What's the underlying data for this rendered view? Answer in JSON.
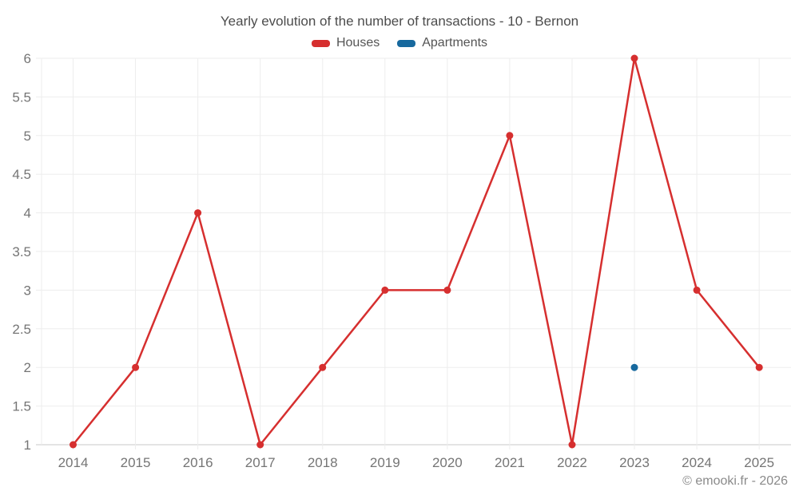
{
  "chart": {
    "title": "Yearly evolution of the number of transactions - 10 - Bernon",
    "footer": "© emooki.fr - 2026"
  },
  "legend": {
    "items": [
      {
        "label": "Houses",
        "color": "#d62f2f"
      },
      {
        "label": "Apartments",
        "color": "#17699e"
      }
    ]
  },
  "chart_data": {
    "type": "line",
    "title": "Yearly evolution of the number of transactions - 10 - Bernon",
    "categories": [
      "2014",
      "2015",
      "2016",
      "2017",
      "2018",
      "2019",
      "2020",
      "2021",
      "2022",
      "2023",
      "2024",
      "2025"
    ],
    "series": [
      {
        "name": "Houses",
        "color": "#d62f2f",
        "values": [
          1,
          2,
          4,
          1,
          2,
          3,
          3,
          5,
          1,
          6,
          3,
          2
        ],
        "style": "line-with-markers"
      },
      {
        "name": "Apartments",
        "color": "#17699e",
        "values": [
          null,
          null,
          null,
          null,
          null,
          null,
          null,
          null,
          null,
          2,
          null,
          null
        ],
        "style": "markers-only"
      }
    ],
    "xlabel": "",
    "ylabel": "",
    "ylim": [
      1,
      6
    ],
    "ytick_step": 0.5,
    "grid": true,
    "legend_position": "top",
    "colors": {
      "gridline": "#ededed",
      "axis_line": "#c9c9c9",
      "tick_label": "#757575"
    }
  }
}
